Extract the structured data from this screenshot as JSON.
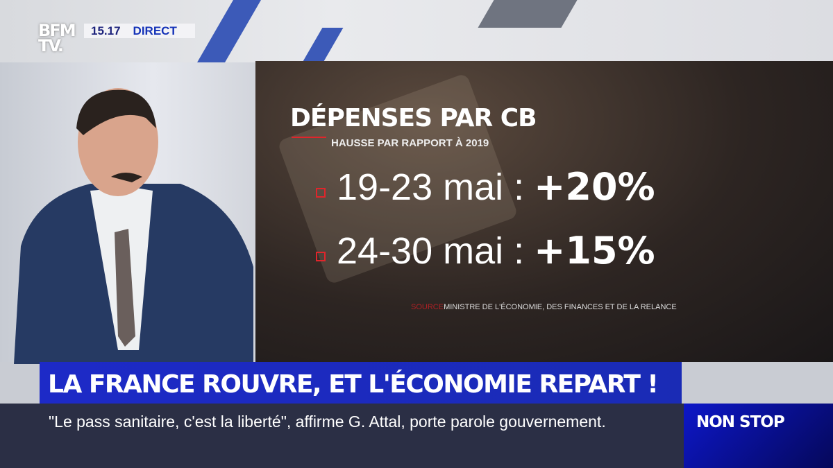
{
  "channel": {
    "logo": "BFM TV.",
    "time": "15.17",
    "live_label": "DIRECT"
  },
  "graphic": {
    "title": "DÉPENSES PAR CB",
    "subtitle": "HAUSSE PAR RAPPORT À 2019",
    "rows": [
      {
        "label": "19-23 mai :",
        "value": "+20%"
      },
      {
        "label": "24-30 mai :",
        "value": "+15%"
      }
    ],
    "source_label": "SOURCE",
    "source_text": "MINISTRE DE L'ÉCONOMIE, DES FINANCES ET DE LA RELANCE",
    "accent": "#e0252b"
  },
  "headline": "LA FRANCE ROUVRE, ET L'ÉCONOMIE REPART !",
  "ticker": "\"Le pass sanitaire, c'est la liberté\", affirme G. Attal, porte parole gouvernement.",
  "nonstop": "NON STOP",
  "colors": {
    "brand_blue": "#1d2ac7",
    "ticker_bg": "#2b2f45"
  }
}
